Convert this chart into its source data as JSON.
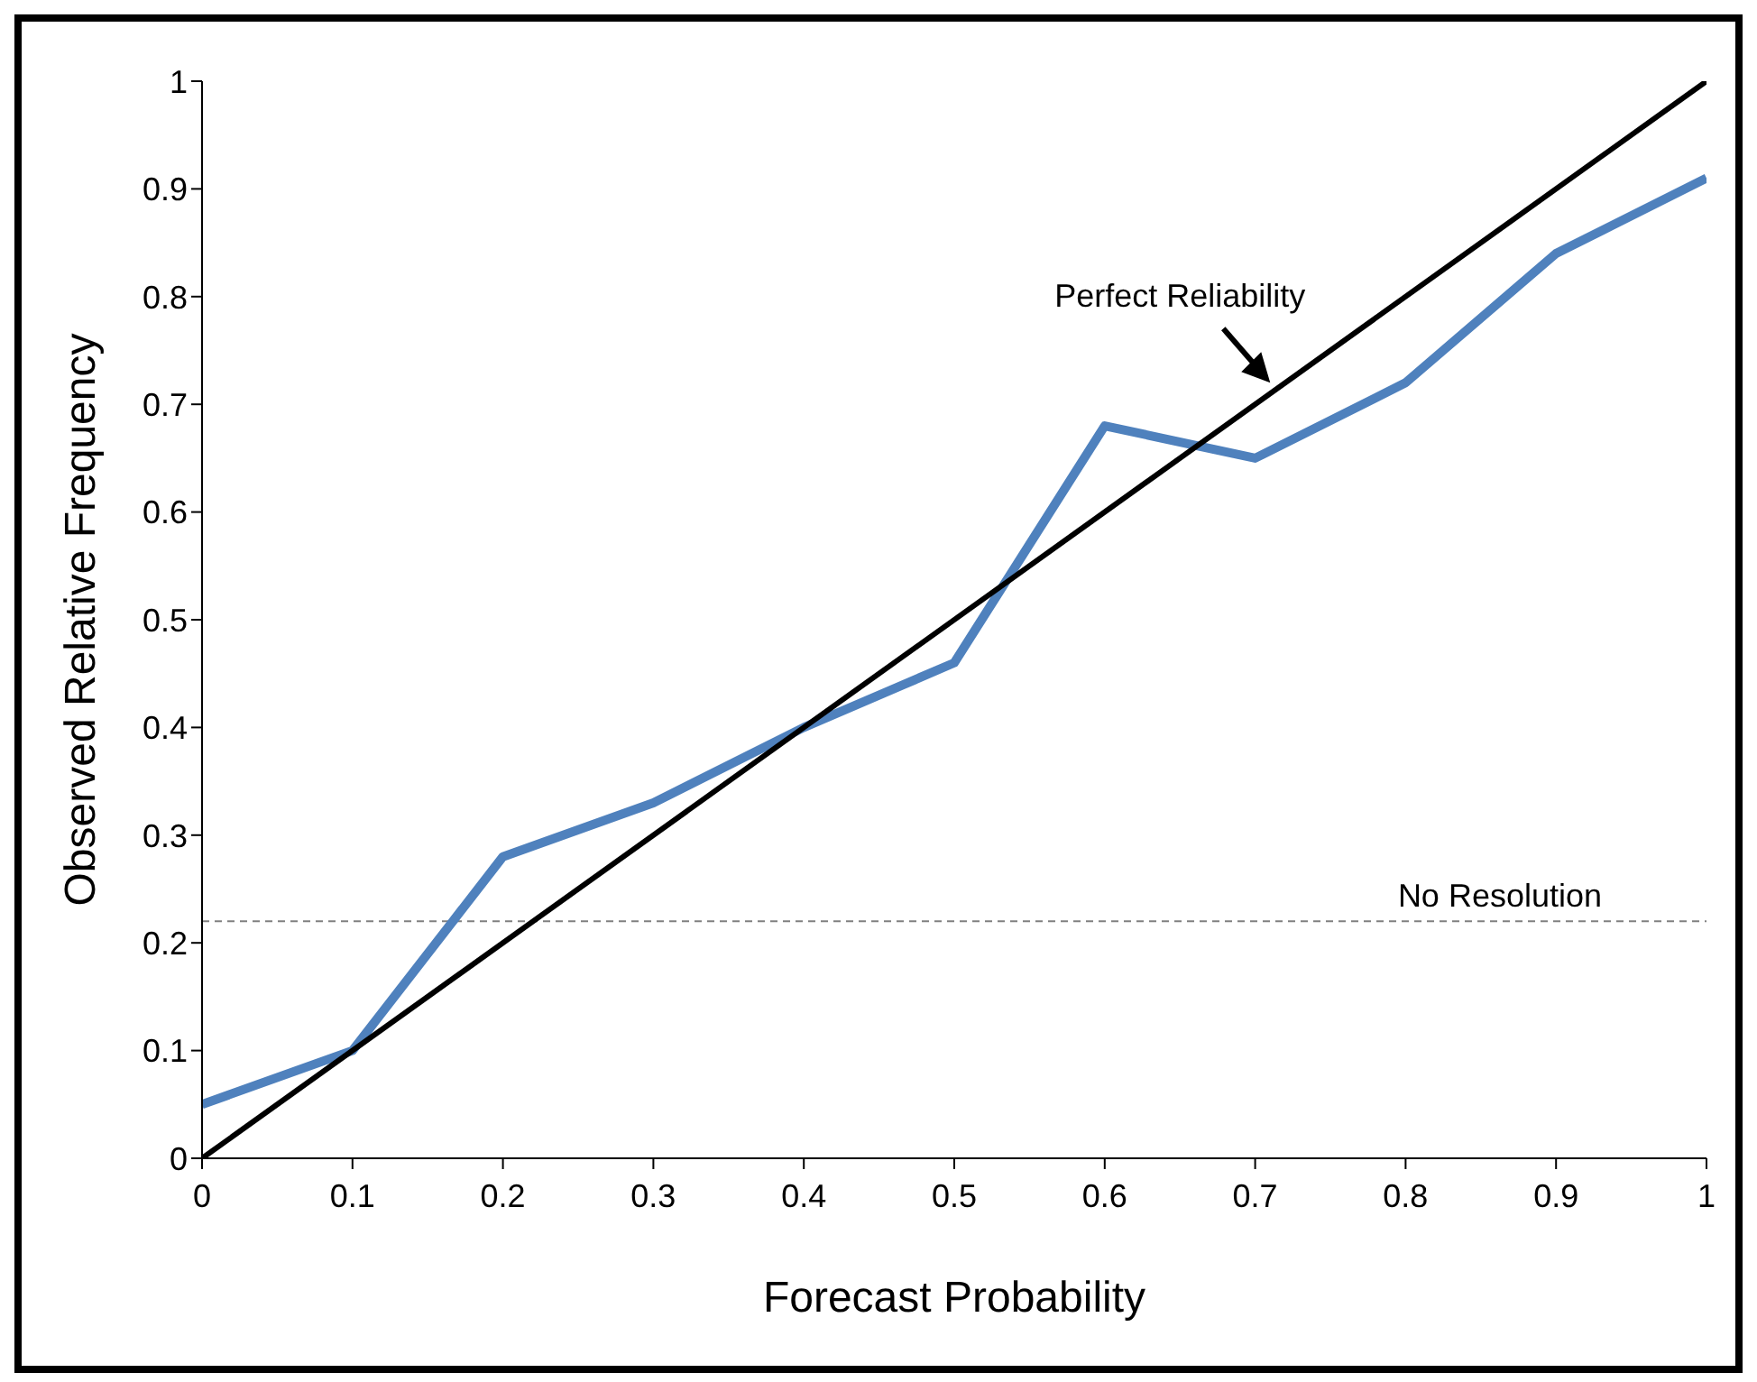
{
  "chart_data": {
    "type": "line",
    "xlabel": "Forecast Probability",
    "ylabel": "Observed Relative Frequency",
    "series": [
      {
        "color": "#4f81bd",
        "x": [
          0,
          0.1,
          0.2,
          0.3,
          0.4,
          0.5,
          0.6,
          0.7,
          0.8,
          0.9,
          1
        ],
        "values": [
          0.05,
          0.1,
          0.28,
          0.33,
          0.4,
          0.46,
          0.68,
          0.65,
          0.72,
          0.84,
          0.91
        ]
      },
      {
        "color": "#000000",
        "x": [
          0,
          1
        ],
        "values": [
          0,
          1
        ]
      }
    ],
    "annotations": [
      {
        "text": "Perfect Reliability",
        "x": 0.71,
        "y": 0.72
      }
    ],
    "ref_lines": [
      {
        "axis": "y",
        "value": 0.22,
        "label": "No Resolution",
        "color": "#808080",
        "line_style": "dashed"
      }
    ],
    "xlim": [
      0,
      1
    ],
    "xticks": [
      0,
      0.1,
      0.2,
      0.3,
      0.4,
      0.5,
      0.6,
      0.7,
      0.8,
      0.9,
      1
    ],
    "ylim": [
      0,
      1
    ],
    "yticks": [
      0,
      0.1,
      0.2,
      0.3,
      0.4,
      0.5,
      0.6,
      0.7,
      0.8,
      0.9,
      1
    ],
    "grid": false,
    "marker": "none",
    "line_style": "solid"
  }
}
